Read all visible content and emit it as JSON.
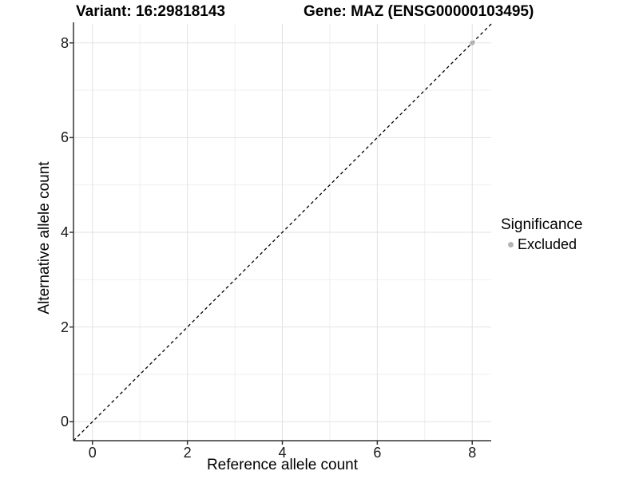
{
  "chart_data": {
    "type": "scatter",
    "title_left": "Variant: 16:29818143",
    "title_right": "Gene: MAZ (ENSG00000103495)",
    "xlabel": "Reference allele count",
    "ylabel": "Alternative allele count",
    "xlim": [
      -0.4,
      8.4
    ],
    "ylim": [
      -0.4,
      8.4
    ],
    "x_ticks": [
      0,
      2,
      4,
      6,
      8
    ],
    "y_ticks": [
      0,
      2,
      4,
      6,
      8
    ],
    "x_minor_gridlines": [
      1,
      3,
      5,
      7
    ],
    "y_minor_gridlines": [
      1,
      3,
      5,
      7
    ],
    "grid": "major and minor light-gray gridlines on white panel",
    "legend": {
      "position": "right",
      "title": "Significance",
      "items": [
        {
          "label": "Excluded",
          "color": "#b4b4b4"
        }
      ]
    },
    "series": [
      {
        "name": "Excluded",
        "marker": "circle",
        "color": "#b4b4b4",
        "points": [
          {
            "x": 8,
            "y": 8
          }
        ]
      }
    ],
    "reference_line": {
      "equation": "y = x",
      "style": "dashed",
      "color": "#000000"
    }
  },
  "colors": {
    "background": "#ffffff",
    "grid_major": "#e2e2e2",
    "grid_minor": "#efefef",
    "axis_line": "#333333",
    "text": "#000000"
  }
}
